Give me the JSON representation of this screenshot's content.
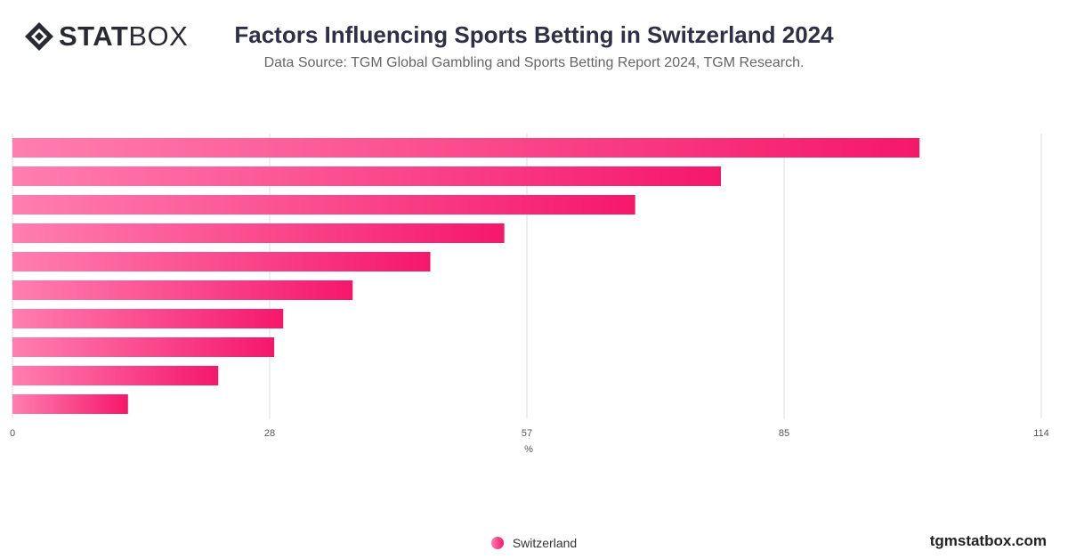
{
  "brand": {
    "logo_bold": "STAT",
    "logo_light": "BOX",
    "site": "tgmstatbox.com"
  },
  "header": {
    "title": "Factors Influencing Sports Betting in Switzerland 2024",
    "subtitle": "Data Source: TGM Global Gambling and Sports Betting Report 2024, TGM Research."
  },
  "colors": {
    "bar_start": "#ff7eb0",
    "bar_end": "#f5186a",
    "grid": "#dddddd"
  },
  "chart_data": {
    "type": "bar",
    "orientation": "horizontal",
    "categories": [
      "",
      "",
      "",
      "",
      "",
      "",
      "",
      "",
      "",
      ""
    ],
    "series": [
      {
        "name": "Switzerland",
        "values": [
          100.5,
          78.5,
          69,
          54.5,
          46.3,
          37.7,
          30,
          29,
          22.8,
          12.8
        ]
      }
    ],
    "xlabel": "%",
    "xlim": [
      0,
      114
    ],
    "xticks": [
      "0",
      "28",
      "57",
      "85",
      "114"
    ],
    "xtick_values": [
      0,
      28.5,
      57,
      85.5,
      114
    ],
    "grid": true,
    "legend": "bottom-center"
  }
}
